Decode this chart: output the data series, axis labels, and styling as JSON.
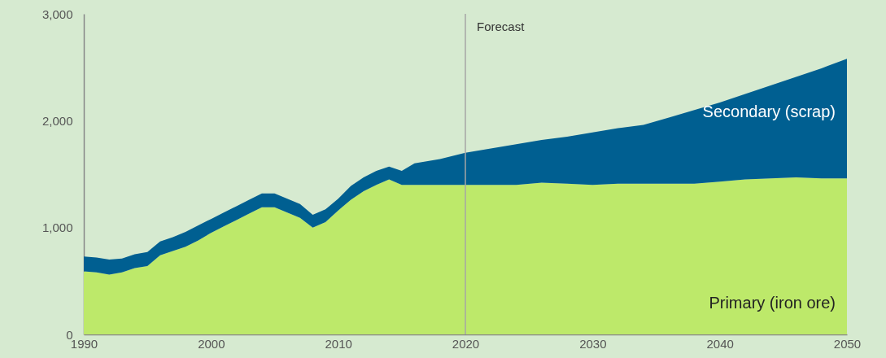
{
  "chart_data": {
    "type": "area",
    "stacked": true,
    "legend": false,
    "grid": false,
    "x": [
      1990,
      1991,
      1992,
      1993,
      1994,
      1995,
      1996,
      1997,
      1998,
      1999,
      2000,
      2001,
      2002,
      2003,
      2004,
      2005,
      2006,
      2007,
      2008,
      2009,
      2010,
      2011,
      2012,
      2013,
      2014,
      2015,
      2016,
      2018,
      2020,
      2022,
      2024,
      2026,
      2028,
      2030,
      2032,
      2034,
      2036,
      2038,
      2040,
      2042,
      2044,
      2046,
      2048,
      2050
    ],
    "series": [
      {
        "name": "Primary (iron ore)",
        "color": "#bde96a",
        "values": [
          590,
          580,
          560,
          580,
          620,
          640,
          740,
          780,
          820,
          880,
          950,
          1010,
          1070,
          1130,
          1190,
          1190,
          1140,
          1090,
          1000,
          1050,
          1160,
          1260,
          1340,
          1400,
          1450,
          1400,
          1400,
          1400,
          1400,
          1400,
          1400,
          1420,
          1410,
          1400,
          1410,
          1410,
          1410,
          1410,
          1430,
          1450,
          1460,
          1470,
          1460,
          1460
        ]
      },
      {
        "name": "Secondary (scrap)",
        "color": "#005f91",
        "values": [
          140,
          140,
          140,
          130,
          130,
          130,
          130,
          130,
          140,
          140,
          130,
          130,
          130,
          130,
          130,
          130,
          130,
          130,
          120,
          120,
          110,
          130,
          130,
          130,
          120,
          130,
          200,
          240,
          300,
          340,
          380,
          400,
          440,
          490,
          520,
          550,
          620,
          690,
          740,
          800,
          870,
          940,
          1030,
          1120
        ]
      }
    ],
    "xlim": [
      1990,
      2050
    ],
    "xticks": [
      1990,
      2000,
      2010,
      2020,
      2030,
      2040,
      2050
    ],
    "ylim": [
      0,
      3000
    ],
    "yticks": [
      0,
      {
        "value": 1000,
        "label": "1,000"
      },
      {
        "value": 2000,
        "label": "2,000"
      },
      {
        "value": 3000,
        "label": "3,000"
      }
    ],
    "ref_lines": [
      {
        "axis": "x",
        "value": 2020,
        "label": "Forecast",
        "color": "#a6a6a6"
      }
    ]
  }
}
